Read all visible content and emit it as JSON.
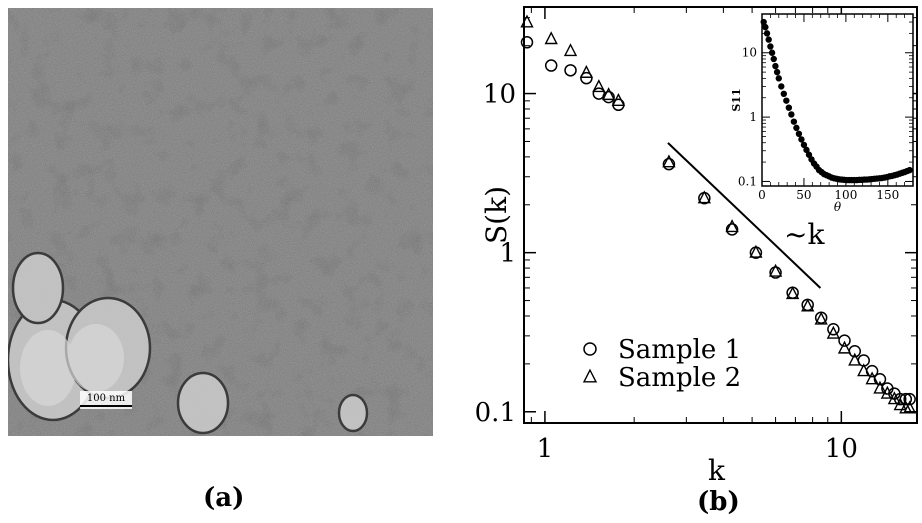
{
  "panel_a": {
    "label": "(a)",
    "scale_bar_text": "100 nm"
  },
  "panel_b": {
    "label": "(b)"
  },
  "chart_data": [
    {
      "type": "scatter",
      "title": "",
      "xlabel": "k",
      "ylabel": "S(k)",
      "xscale": "log",
      "yscale": "log",
      "xlim": [
        0.85,
        18
      ],
      "ylim": [
        0.085,
        35
      ],
      "x_ticks": [
        1,
        10
      ],
      "x_tick_labels": [
        "1",
        "10"
      ],
      "y_ticks": [
        0.1,
        1,
        10
      ],
      "y_tick_labels": [
        "0.1",
        "1",
        "10"
      ],
      "grid": false,
      "legend_position": "bottom-left",
      "annotation": {
        "text_prefix": "~k",
        "exponent": "-1.75",
        "line": {
          "from": [
            2.6,
            4.9
          ],
          "to": [
            8.5,
            0.6
          ]
        }
      },
      "series": [
        {
          "name": "Sample 1",
          "marker": "circle",
          "x": [
            0.87,
            1.05,
            1.22,
            1.38,
            1.52,
            1.64,
            1.77,
            2.62,
            3.45,
            4.28,
            5.15,
            6.0,
            6.85,
            7.7,
            8.55,
            9.4,
            10.25,
            11.1,
            11.9,
            12.7,
            13.5,
            14.3,
            15.1,
            15.8,
            16.5,
            17.0
          ],
          "y": [
            21.0,
            15.0,
            14.0,
            12.5,
            10.0,
            9.5,
            8.5,
            3.6,
            2.2,
            1.4,
            1.0,
            0.75,
            0.56,
            0.47,
            0.39,
            0.33,
            0.28,
            0.24,
            0.21,
            0.18,
            0.16,
            0.14,
            0.13,
            0.12,
            0.12,
            0.12
          ]
        },
        {
          "name": "Sample 2",
          "marker": "triangle",
          "x": [
            0.87,
            1.05,
            1.22,
            1.38,
            1.52,
            1.64,
            1.77,
            2.62,
            3.45,
            4.28,
            5.15,
            6.0,
            6.85,
            7.7,
            8.55,
            9.4,
            10.25,
            11.1,
            11.9,
            12.7,
            13.5,
            14.3,
            15.1,
            15.8,
            16.5,
            17.0
          ],
          "y": [
            28.0,
            22.0,
            18.5,
            13.5,
            11.0,
            9.8,
            9.0,
            3.7,
            2.2,
            1.45,
            1.0,
            0.76,
            0.55,
            0.46,
            0.38,
            0.31,
            0.25,
            0.21,
            0.18,
            0.16,
            0.14,
            0.13,
            0.12,
            0.11,
            0.105,
            0.105
          ]
        }
      ]
    },
    {
      "type": "scatter",
      "title": "",
      "xlabel": "θ",
      "ylabel": "S11",
      "xscale": "linear",
      "yscale": "log",
      "xlim": [
        0,
        180
      ],
      "ylim": [
        0.085,
        40
      ],
      "x_ticks": [
        0,
        50,
        100,
        150
      ],
      "x_tick_labels": [
        "0",
        "50",
        "100",
        "150"
      ],
      "y_ticks": [
        0.1,
        1,
        10
      ],
      "y_tick_labels": [
        "0.1",
        "1",
        "10"
      ],
      "grid": false,
      "series": [
        {
          "marker": "filled-circle",
          "x": [
            2,
            4,
            6,
            8,
            10,
            12,
            14,
            16,
            18,
            20,
            23,
            26,
            29,
            32,
            35,
            38,
            41,
            44,
            47,
            50,
            53,
            56,
            59,
            62,
            65,
            68,
            71,
            74,
            77,
            80,
            83,
            86,
            89,
            92,
            95,
            98,
            101,
            104,
            107,
            110,
            113,
            116,
            119,
            122,
            125,
            128,
            131,
            134,
            137,
            140,
            143,
            146,
            149,
            152,
            155,
            158,
            161,
            164,
            167,
            170,
            173,
            176
          ],
          "y": [
            30,
            25,
            20,
            16,
            12.5,
            10,
            8,
            6.2,
            5,
            4,
            3.0,
            2.3,
            1.8,
            1.4,
            1.1,
            0.85,
            0.68,
            0.55,
            0.45,
            0.37,
            0.31,
            0.26,
            0.22,
            0.19,
            0.17,
            0.15,
            0.14,
            0.13,
            0.125,
            0.12,
            0.115,
            0.112,
            0.11,
            0.108,
            0.107,
            0.106,
            0.105,
            0.105,
            0.105,
            0.105,
            0.105,
            0.106,
            0.106,
            0.107,
            0.107,
            0.108,
            0.109,
            0.11,
            0.111,
            0.112,
            0.113,
            0.115,
            0.117,
            0.12,
            0.122,
            0.125,
            0.128,
            0.132,
            0.136,
            0.14,
            0.145,
            0.15
          ]
        }
      ]
    }
  ]
}
